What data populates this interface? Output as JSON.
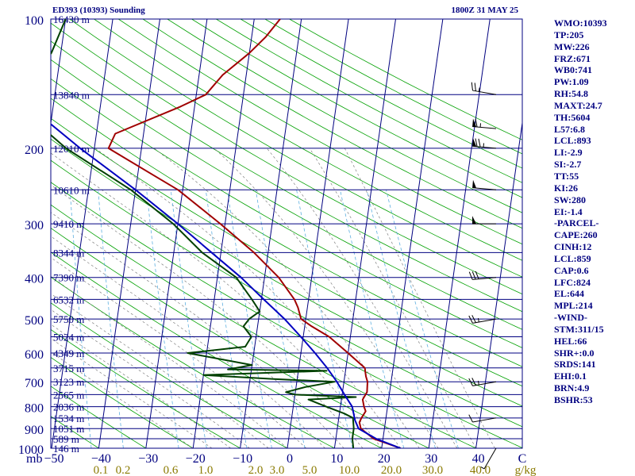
{
  "header": {
    "station": "ED393 (10393) Sounding",
    "time": "1800Z 31 MAY 25"
  },
  "colors": {
    "background": "#ffffff",
    "frame": "#000080",
    "text": "#000080",
    "temperature": "#a00000",
    "dewpoint": "#004000",
    "parcel": "#0000c0",
    "dry_adiabat": "#00a000",
    "moist_adiabat": "#808080",
    "mixing_ratio": "#5fb0e0",
    "mixing_ratio_label": "#8a7a00",
    "wind": "#000000"
  },
  "chart_data": {
    "type": "skew-t",
    "pressure_axis": {
      "unit_label": "mb",
      "ticks": [
        "100",
        "200",
        "300",
        "400",
        "500",
        "600",
        "700",
        "800",
        "900",
        "1000"
      ],
      "range": [
        100,
        1000
      ],
      "scale": "log"
    },
    "temperature_axis": {
      "ticks": [
        "−50",
        "−40",
        "−30",
        "−20",
        "−10",
        "0",
        "10",
        "20",
        "30",
        "40",
        "C"
      ],
      "range": [
        -50,
        50
      ]
    },
    "height_labels": [
      {
        "p": 100,
        "label": "16430 m"
      },
      {
        "p": 150,
        "label": "13840 m"
      },
      {
        "p": 200,
        "label": "12010 m"
      },
      {
        "p": 250,
        "label": "10610 m"
      },
      {
        "p": 300,
        "label": "9410 m"
      },
      {
        "p": 350,
        "label": "8344 m"
      },
      {
        "p": 400,
        "label": "7390 m"
      },
      {
        "p": 450,
        "label": "6532 m"
      },
      {
        "p": 500,
        "label": "5750 m"
      },
      {
        "p": 550,
        "label": "5024 m"
      },
      {
        "p": 600,
        "label": "4349 m"
      },
      {
        "p": 650,
        "label": "3715 m"
      },
      {
        "p": 700,
        "label": "3123 m"
      },
      {
        "p": 750,
        "label": "2565 m"
      },
      {
        "p": 800,
        "label": "2036 m"
      },
      {
        "p": 850,
        "label": "1534 m"
      },
      {
        "p": 900,
        "label": "1051 m"
      },
      {
        "p": 950,
        "label": "589 m"
      },
      {
        "p": 1000,
        "label": "146 m"
      }
    ],
    "mixing_ratio_labels": [
      "0.1",
      "0.2",
      "0.6",
      "1.0",
      "2.0",
      "3.0",
      "5.0",
      "10.0",
      "20.0",
      "30.0",
      "40.0",
      "g/kg"
    ],
    "mixing_ratio_values": [
      0.1,
      0.2,
      0.6,
      1.0,
      2.0,
      3.0,
      5.0,
      10.0,
      20.0,
      30.0,
      40.0
    ],
    "series": [
      {
        "key": "temperature",
        "points": [
          [
            1000,
            24.0
          ],
          [
            950,
            18.0
          ],
          [
            900,
            15.0
          ],
          [
            870,
            14.5
          ],
          [
            850,
            14.8
          ],
          [
            820,
            15.5
          ],
          [
            800,
            15.0
          ],
          [
            770,
            14.5
          ],
          [
            740,
            15.2
          ],
          [
            700,
            15.0
          ],
          [
            680,
            14.5
          ],
          [
            650,
            14.0
          ],
          [
            600,
            10.0
          ],
          [
            550,
            5.5
          ],
          [
            520,
            1.5
          ],
          [
            500,
            -1.0
          ],
          [
            470,
            -2.0
          ],
          [
            450,
            -3.0
          ],
          [
            400,
            -7.0
          ],
          [
            350,
            -13.0
          ],
          [
            300,
            -21.0
          ],
          [
            250,
            -31.0
          ],
          [
            230,
            -37.0
          ],
          [
            200,
            -47.0
          ],
          [
            185,
            -46.0
          ],
          [
            160,
            -33.0
          ],
          [
            150,
            -28.0
          ],
          [
            135,
            -25.0
          ],
          [
            120,
            -20.0
          ],
          [
            110,
            -17.0
          ],
          [
            100,
            -14.5
          ]
        ]
      },
      {
        "key": "dewpoint",
        "points": [
          [
            1000,
            14.0
          ],
          [
            950,
            13.5
          ],
          [
            900,
            13.5
          ],
          [
            850,
            13.0
          ],
          [
            830,
            11.0
          ],
          [
            800,
            7.0
          ],
          [
            770,
            3.0
          ],
          [
            760,
            13.0
          ],
          [
            750,
            0.0
          ],
          [
            740,
            -2.0
          ],
          [
            720,
            2.0
          ],
          [
            700,
            8.0
          ],
          [
            690,
            -5.0
          ],
          [
            675,
            -20.0
          ],
          [
            660,
            6.0
          ],
          [
            655,
            -15.0
          ],
          [
            640,
            -10.0
          ],
          [
            600,
            -24.0
          ],
          [
            580,
            -12.0
          ],
          [
            550,
            -11.0
          ],
          [
            520,
            -13.0
          ],
          [
            500,
            -12.0
          ],
          [
            480,
            -10.0
          ],
          [
            450,
            -12.0
          ],
          [
            400,
            -16.0
          ],
          [
            350,
            -24.0
          ],
          [
            300,
            -31.0
          ],
          [
            250,
            -41.0
          ],
          [
            200,
            -56.0
          ],
          [
            185,
            -60.0
          ],
          [
            160,
            -63.0
          ],
          [
            150,
            -66.0
          ],
          [
            140,
            -66.0
          ],
          [
            120,
            -62.0
          ],
          [
            100,
            -60.0
          ]
        ]
      },
      {
        "key": "parcel",
        "points": [
          [
            1000,
            24.0
          ],
          [
            950,
            18.5
          ],
          [
            900,
            14.5
          ],
          [
            860,
            13.5
          ],
          [
            800,
            12.5
          ],
          [
            750,
            10.5
          ],
          [
            700,
            8.5
          ],
          [
            650,
            6.0
          ],
          [
            600,
            3.0
          ],
          [
            550,
            -0.5
          ],
          [
            500,
            -4.5
          ],
          [
            450,
            -9.5
          ],
          [
            400,
            -15.0
          ],
          [
            350,
            -22.0
          ],
          [
            300,
            -30.0
          ],
          [
            250,
            -40.0
          ],
          [
            200,
            -53.0
          ],
          [
            160,
            -65.0
          ],
          [
            130,
            -76.0
          ],
          [
            110,
            -85.0
          ],
          [
            100,
            -90.0
          ]
        ]
      }
    ],
    "wind_barbs": [
      {
        "p": 1000,
        "dir": 210,
        "spd": 5
      },
      {
        "p": 850,
        "dir": 260,
        "spd": 10
      },
      {
        "p": 700,
        "dir": 260,
        "spd": 25
      },
      {
        "p": 500,
        "dir": 260,
        "spd": 25
      },
      {
        "p": 400,
        "dir": 265,
        "spd": 30
      },
      {
        "p": 300,
        "dir": 270,
        "spd": 50
      },
      {
        "p": 250,
        "dir": 275,
        "spd": 50
      },
      {
        "p": 200,
        "dir": 275,
        "spd": 75
      },
      {
        "p": 180,
        "dir": 275,
        "spd": 65
      },
      {
        "p": 150,
        "dir": 280,
        "spd": 25
      }
    ]
  },
  "indices": [
    "WMO:10393",
    "TP:205",
    "MW:226",
    "FRZ:671",
    "WB0:741",
    "PW:1.09",
    "RH:54.8",
    "MAXT:24.7",
    "TH:5604",
    "L57:6.8",
    "LCL:893",
    "LI:-2.9",
    "SI:-2.7",
    "TT:55",
    "KI:26",
    "SW:280",
    "EI:-1.4",
    "-PARCEL-",
    "CAPE:260",
    "CINH:12",
    "LCL:859",
    "CAP:0.6",
    "LFC:824",
    "EL:644",
    "MPL:214",
    "-WIND-",
    "STM:311/15",
    "HEL:66",
    "SHR+:0.0",
    "SRDS:141",
    "EHI:0.1",
    "BRN:4.9",
    "BSHR:53"
  ]
}
